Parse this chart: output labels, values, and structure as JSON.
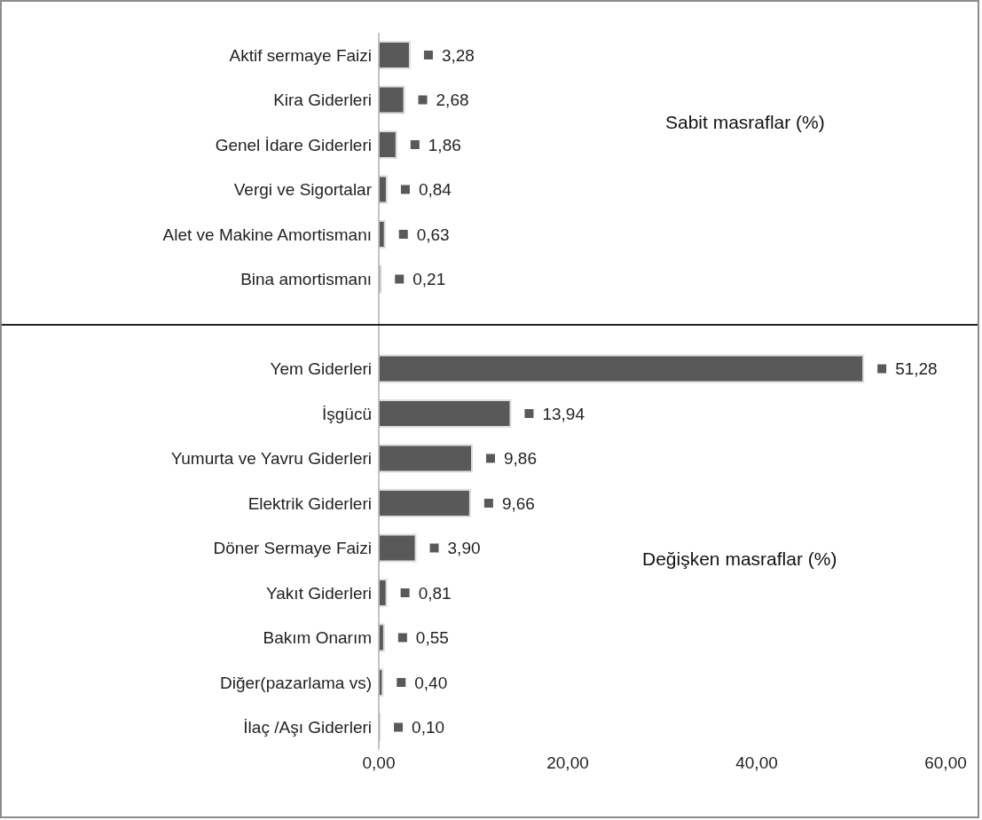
{
  "chart_data": {
    "type": "bar",
    "orientation": "horizontal",
    "categories": [
      "Aktif sermaye Faizi",
      "Kira Giderleri",
      "Genel İdare Giderleri",
      "Vergi ve Sigortalar",
      "Alet ve Makine Amortismanı",
      "Bina  amortismanı",
      null,
      "Yem Giderleri",
      "İşgücü",
      "Yumurta ve Yavru Giderleri",
      "Elektrik Giderleri",
      "Döner Sermaye Faizi",
      "Yakıt Giderleri",
      "Bakım Onarım",
      "Diğer(pazarlama vs)",
      "İlaç /Aşı Giderleri"
    ],
    "values": [
      3.28,
      2.68,
      1.86,
      0.84,
      0.63,
      0.21,
      null,
      51.28,
      13.94,
      9.86,
      9.66,
      3.9,
      0.81,
      0.55,
      0.4,
      0.1
    ],
    "value_labels": [
      "3,28",
      "2,68",
      "1,86",
      "0,84",
      "0,63",
      "0,21",
      null,
      "51,28",
      "13,94",
      "9,86",
      "9,66",
      "3,90",
      "0,81",
      "0,55",
      "0,40",
      "0,10"
    ],
    "color": "#595959",
    "xlim": [
      0,
      60
    ],
    "xticks": [
      {
        "value": 0,
        "label": "0,00"
      },
      {
        "value": 20,
        "label": "20,00"
      },
      {
        "value": 40,
        "label": "40,00"
      },
      {
        "value": 60,
        "label": "60,00"
      }
    ],
    "annotations": [
      "Sabit masraflar (%)",
      "Değişken masraflar (%)"
    ],
    "grid": false
  }
}
